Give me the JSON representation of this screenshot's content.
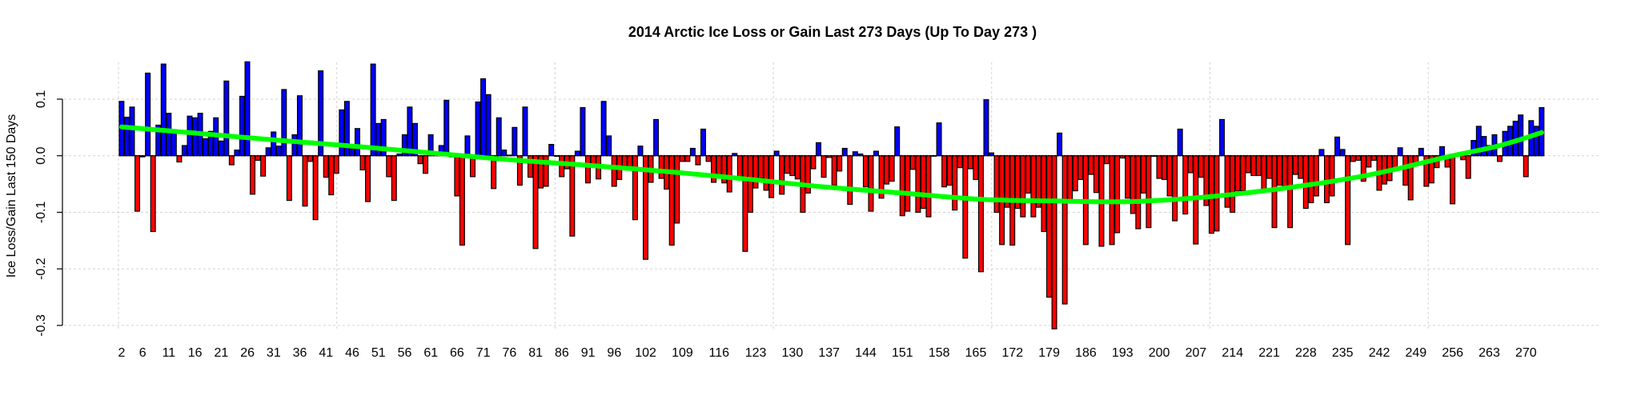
{
  "chart_data": {
    "type": "bar",
    "title": "2014 Arctic Ice Loss or Gain Last 273 Days (Up To Day 273 )",
    "xlabel": "",
    "ylabel": "Ice Loss/Gain Last 150 Days",
    "ylim": [
      -0.3,
      0.17
    ],
    "grid": true,
    "x_start_day": 2,
    "x_end_day": 273,
    "x_tick_labels": [
      "2",
      "6",
      "11",
      "16",
      "21",
      "26",
      "31",
      "36",
      "41",
      "46",
      "51",
      "56",
      "61",
      "66",
      "71",
      "76",
      "81",
      "86",
      "91",
      "96",
      "102",
      "109",
      "116",
      "123",
      "130",
      "137",
      "144",
      "151",
      "158",
      "165",
      "172",
      "179",
      "186",
      "193",
      "200",
      "207",
      "214",
      "221",
      "228",
      "235",
      "242",
      "249",
      "256",
      "263",
      "270"
    ],
    "y_ticks": [
      0.1,
      0.0,
      -0.1,
      -0.2,
      -0.3
    ],
    "y_tick_labels": [
      "0.1",
      "0.0",
      "-0.1",
      "-0.2",
      "-0.3"
    ],
    "colors": {
      "gain": "#0000ff",
      "loss": "#ff0000",
      "trend": "#00ff00"
    },
    "values": [
      0.096,
      0.068,
      0.086,
      -0.098,
      -0.002,
      0.146,
      -0.134,
      0.054,
      0.162,
      0.075,
      0.043,
      -0.011,
      0.018,
      0.07,
      0.067,
      0.075,
      0.03,
      0.043,
      0.067,
      0.026,
      0.132,
      -0.016,
      0.01,
      0.105,
      0.166,
      -0.068,
      -0.008,
      -0.036,
      0.014,
      0.042,
      0.017,
      0.117,
      -0.079,
      0.037,
      0.106,
      -0.089,
      -0.01,
      -0.113,
      0.15,
      -0.038,
      -0.069,
      -0.031,
      0.081,
      0.096,
      0.012,
      0.048,
      -0.025,
      -0.081,
      0.162,
      0.057,
      0.064,
      -0.037,
      -0.079,
      0.003,
      0.037,
      0.086,
      0.057,
      -0.014,
      -0.031,
      0.037,
      0.003,
      0.018,
      0.098,
      -0.002,
      -0.071,
      -0.158,
      0.035,
      -0.037,
      0.095,
      0.136,
      0.108,
      -0.058,
      0.067,
      0.01,
      0.001,
      0.05,
      -0.052,
      0.086,
      -0.038,
      -0.164,
      -0.057,
      -0.054,
      0.02,
      -0.001,
      -0.037,
      -0.023,
      -0.142,
      0.008,
      0.085,
      -0.048,
      -0.016,
      -0.041,
      0.096,
      0.035,
      -0.054,
      -0.042,
      -0.018,
      -0.02,
      -0.113,
      0.017,
      -0.183,
      -0.047,
      0.064,
      -0.04,
      -0.059,
      -0.158,
      -0.119,
      -0.01,
      -0.01,
      0.013,
      -0.016,
      0.047,
      -0.01,
      -0.047,
      -0.037,
      -0.048,
      -0.064,
      0.004,
      -0.037,
      -0.169,
      -0.1,
      -0.057,
      -0.04,
      -0.061,
      -0.074,
      0.008,
      -0.068,
      -0.031,
      -0.035,
      -0.041,
      -0.1,
      -0.066,
      -0.023,
      0.023,
      -0.038,
      -0.003,
      -0.052,
      -0.027,
      0.013,
      -0.086,
      0.007,
      0.003,
      -0.055,
      -0.098,
      0.008,
      -0.075,
      -0.05,
      -0.045,
      0.051,
      -0.106,
      -0.098,
      -0.024,
      -0.1,
      -0.093,
      -0.108,
      0.0,
      0.058,
      -0.055,
      -0.052,
      -0.096,
      -0.021,
      -0.181,
      -0.023,
      -0.042,
      -0.205,
      0.099,
      0.005,
      -0.1,
      -0.157,
      -0.091,
      -0.158,
      -0.093,
      -0.108,
      -0.066,
      -0.108,
      -0.091,
      -0.134,
      -0.25,
      -0.306,
      0.04,
      -0.262,
      -0.078,
      -0.062,
      -0.042,
      -0.157,
      -0.033,
      -0.065,
      -0.16,
      -0.014,
      -0.157,
      -0.136,
      -0.004,
      -0.075,
      -0.102,
      -0.129,
      -0.066,
      -0.127,
      -0.001,
      -0.04,
      -0.042,
      -0.071,
      -0.115,
      0.047,
      -0.103,
      -0.03,
      -0.156,
      -0.038,
      -0.088,
      -0.137,
      -0.133,
      0.064,
      -0.091,
      -0.1,
      -0.062,
      -0.062,
      -0.03,
      -0.035,
      -0.035,
      -0.059,
      -0.04,
      -0.127,
      -0.052,
      -0.054,
      -0.127,
      -0.033,
      -0.04,
      -0.093,
      -0.083,
      -0.071,
      0.011,
      -0.083,
      -0.071,
      0.033,
      0.011,
      -0.157,
      -0.01,
      -0.008,
      -0.045,
      -0.02,
      -0.008,
      -0.061,
      -0.05,
      -0.044,
      -0.025,
      0.014,
      -0.052,
      -0.078,
      -0.016,
      0.013,
      -0.054,
      -0.048,
      -0.021,
      0.016,
      -0.02,
      -0.085,
      0.0,
      -0.007,
      -0.04,
      0.027,
      0.052,
      0.034,
      0.018,
      0.037,
      -0.01,
      0.043,
      0.052,
      0.061,
      0.072,
      -0.037,
      0.062,
      0.052,
      0.085
    ],
    "trend": [
      [
        2,
        0.051
      ],
      [
        16,
        0.04
      ],
      [
        31,
        0.028
      ],
      [
        46,
        0.017
      ],
      [
        61,
        0.005
      ],
      [
        76,
        -0.007
      ],
      [
        91,
        -0.017
      ],
      [
        106,
        -0.028
      ],
      [
        121,
        -0.041
      ],
      [
        136,
        -0.055
      ],
      [
        151,
        -0.066
      ],
      [
        166,
        -0.077
      ],
      [
        180,
        -0.08
      ],
      [
        195,
        -0.081
      ],
      [
        210,
        -0.072
      ],
      [
        225,
        -0.056
      ],
      [
        240,
        -0.034
      ],
      [
        255,
        -0.002
      ],
      [
        265,
        0.018
      ],
      [
        273,
        0.041
      ]
    ]
  }
}
